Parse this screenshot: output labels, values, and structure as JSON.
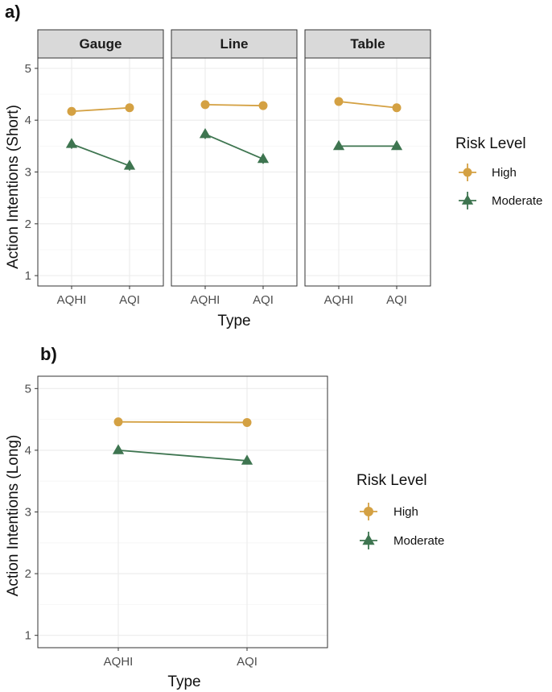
{
  "colors": {
    "High": "#d4a143",
    "Moderate": "#3e7550",
    "strip": "#d9d9d9",
    "grid_major": "#ebebeb",
    "grid_minor": "#f5f5f5",
    "border": "#333333"
  },
  "panels": {
    "a": {
      "label": "a)"
    },
    "b": {
      "label": "b)"
    }
  },
  "legend": {
    "title": "Risk Level",
    "items": [
      {
        "key": "High",
        "label": "High",
        "shape": "circle"
      },
      {
        "key": "Moderate",
        "label": "Moderate",
        "shape": "triangle"
      }
    ]
  },
  "chart_data": [
    {
      "type": "line",
      "panel": "a",
      "xlabel": "Type",
      "ylabel": "Action Intentions (Short)",
      "categories": [
        "AQHI",
        "AQI"
      ],
      "ylim": [
        0.8,
        5.2
      ],
      "yticks": [
        1,
        2,
        3,
        4,
        5
      ],
      "facets": [
        {
          "name": "Gauge",
          "series": [
            {
              "name": "High",
              "values": [
                4.17,
                4.24
              ],
              "err": [
                0.08,
                0.08
              ]
            },
            {
              "name": "Moderate",
              "values": [
                3.54,
                3.12
              ],
              "err": [
                0.09,
                0.09
              ]
            }
          ]
        },
        {
          "name": "Line",
          "series": [
            {
              "name": "High",
              "values": [
                4.3,
                4.28
              ],
              "err": [
                0.08,
                0.08
              ]
            },
            {
              "name": "Moderate",
              "values": [
                3.73,
                3.25
              ],
              "err": [
                0.09,
                0.09
              ]
            }
          ]
        },
        {
          "name": "Table",
          "series": [
            {
              "name": "High",
              "values": [
                4.36,
                4.24
              ],
              "err": [
                0.08,
                0.08
              ]
            },
            {
              "name": "Moderate",
              "values": [
                3.5,
                3.5
              ],
              "err": [
                0.06,
                0.06
              ]
            }
          ]
        }
      ]
    },
    {
      "type": "line",
      "panel": "b",
      "xlabel": "Type",
      "ylabel": "Action Intentions (Long)",
      "categories": [
        "AQHI",
        "AQI"
      ],
      "ylim": [
        0.8,
        5.2
      ],
      "yticks": [
        1,
        2,
        3,
        4,
        5
      ],
      "series": [
        {
          "name": "High",
          "values": [
            4.46,
            4.45
          ],
          "err": [
            0.04,
            0.04
          ]
        },
        {
          "name": "Moderate",
          "values": [
            4.0,
            3.83
          ],
          "err": [
            0.05,
            0.05
          ]
        }
      ]
    }
  ]
}
